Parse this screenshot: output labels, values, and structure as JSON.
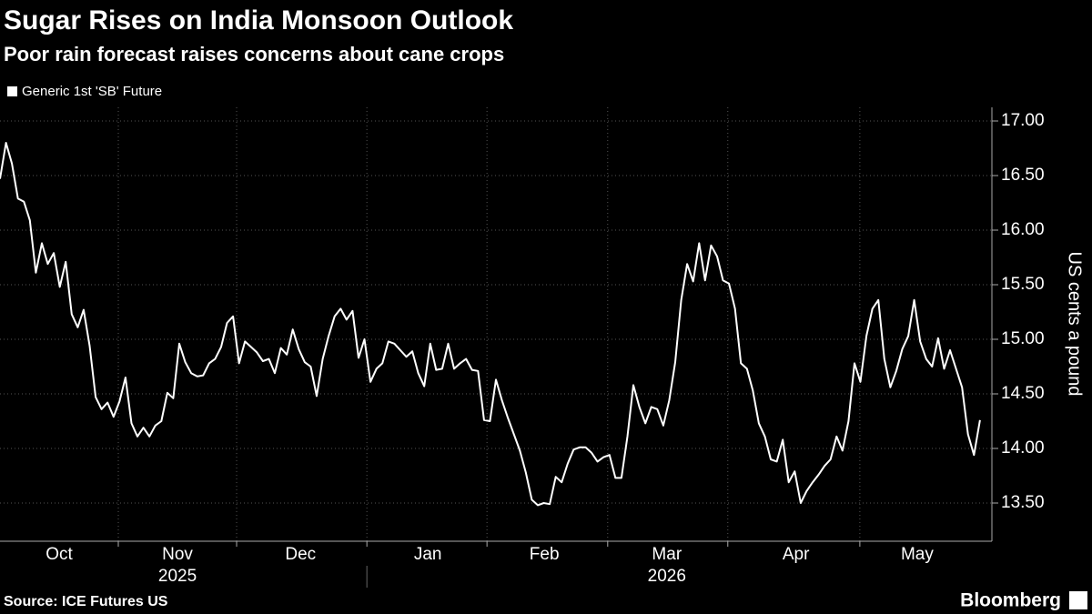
{
  "chart_data": {
    "type": "line",
    "title": "Sugar Rises on India Monsoon Outlook",
    "subtitle": "Poor rain forecast raises concerns about cane crops",
    "y_axis_label": "US cents a pound",
    "source": "Source: ICE Futures US",
    "logo": "Bloomberg",
    "series": [
      {
        "name": "Generic 1st 'SB' Future",
        "color": "#ffffff",
        "values": [
          16.47,
          16.8,
          16.61,
          16.29,
          16.26,
          16.09,
          15.61,
          15.88,
          15.69,
          15.79,
          15.48,
          15.71,
          15.23,
          15.11,
          15.27,
          14.94,
          14.47,
          14.36,
          14.42,
          14.29,
          14.43,
          14.65,
          14.23,
          14.11,
          14.19,
          14.11,
          14.21,
          14.25,
          14.51,
          14.46,
          14.96,
          14.79,
          14.69,
          14.66,
          14.67,
          14.78,
          14.82,
          14.93,
          15.15,
          15.21,
          14.78,
          14.98,
          14.93,
          14.88,
          14.8,
          14.82,
          14.69,
          14.92,
          14.86,
          15.09,
          14.91,
          14.79,
          14.75,
          14.48,
          14.82,
          15.03,
          15.21,
          15.28,
          15.18,
          15.26,
          14.83,
          15.0,
          14.61,
          14.73,
          14.78,
          14.98,
          14.96,
          14.9,
          14.84,
          14.89,
          14.69,
          14.57,
          14.96,
          14.72,
          14.73,
          14.96,
          14.73,
          14.78,
          14.82,
          14.72,
          14.71,
          14.26,
          14.25,
          14.63,
          14.44,
          14.28,
          14.13,
          13.98,
          13.78,
          13.53,
          13.48,
          13.5,
          13.49,
          13.74,
          13.69,
          13.86,
          13.99,
          14.01,
          14.01,
          13.96,
          13.88,
          13.92,
          13.94,
          13.73,
          13.73,
          14.11,
          14.58,
          14.38,
          14.23,
          14.38,
          14.36,
          14.21,
          14.44,
          14.79,
          15.36,
          15.69,
          15.53,
          15.88,
          15.54,
          15.86,
          15.76,
          15.54,
          15.51,
          15.28,
          14.78,
          14.73,
          14.53,
          14.23,
          14.11,
          13.9,
          13.88,
          14.08,
          13.69,
          13.79,
          13.5,
          13.61,
          13.69,
          13.76,
          13.84,
          13.9,
          14.11,
          13.98,
          14.25,
          14.78,
          14.61,
          15.03,
          15.28,
          15.36,
          14.82,
          14.56,
          14.71,
          14.91,
          15.03,
          15.36,
          14.98,
          14.82,
          14.75,
          15.01,
          14.73,
          14.9,
          14.73,
          14.56,
          14.13,
          13.94,
          14.26
        ]
      }
    ],
    "xlim": [
      0,
      166
    ],
    "xticks": [
      {
        "value": 9.9,
        "label": "Oct"
      },
      {
        "value": 29.7,
        "label": "Nov"
      },
      {
        "value": 50.3,
        "label": "Dec"
      },
      {
        "value": 71.6,
        "label": "Jan"
      },
      {
        "value": 91.1,
        "label": "Feb"
      },
      {
        "value": 111.6,
        "label": "Mar"
      },
      {
        "value": 133.2,
        "label": "Apr"
      },
      {
        "value": 153.5,
        "label": "May"
      }
    ],
    "xgrid": [
      19.8,
      39.6,
      61.4,
      81.5,
      101.7,
      121.8,
      143.9
    ],
    "years": [
      {
        "value": 29.7,
        "label": "2025"
      },
      {
        "value": 111.6,
        "label": "2026"
      }
    ],
    "year_divider": 61.4,
    "ylim": [
      13.15,
      17.125
    ],
    "yticks": [
      {
        "value": 13.5,
        "label": "13.50"
      },
      {
        "value": 14,
        "label": "14.00"
      },
      {
        "value": 14.5,
        "label": "14.50"
      },
      {
        "value": 15,
        "label": "15.00"
      },
      {
        "value": 15.5,
        "label": "15.50"
      },
      {
        "value": 16,
        "label": "16.00"
      },
      {
        "value": 16.5,
        "label": "16.50"
      },
      {
        "value": 17,
        "label": "17.00"
      }
    ],
    "grid": true
  }
}
